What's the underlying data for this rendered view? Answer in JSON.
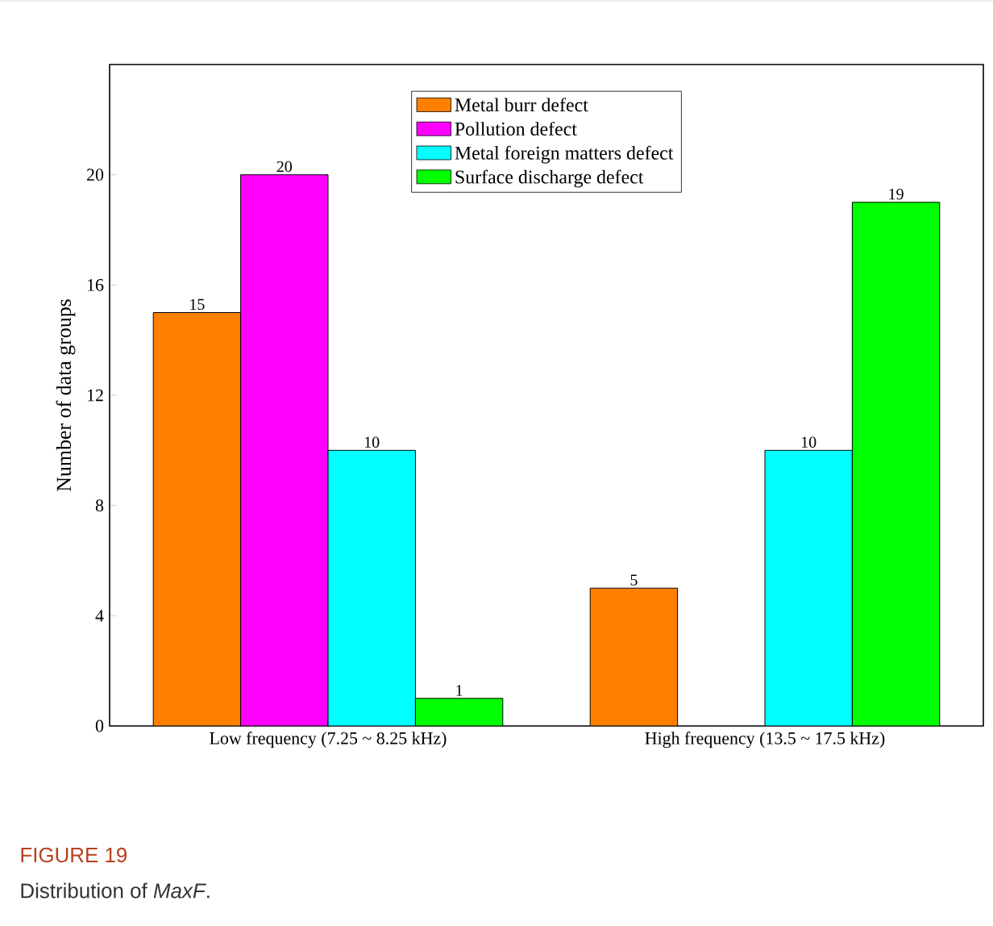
{
  "chart_data": {
    "type": "bar",
    "ylabel": "Number of data groups",
    "categories": [
      "Low frequency (7.25 ~ 8.25 kHz)",
      "High frequency (13.5 ~ 17.5 kHz)"
    ],
    "series": [
      {
        "name": "Metal burr defect",
        "color": "#ff8000",
        "values": [
          15,
          5
        ],
        "value_labels": [
          "15",
          "5"
        ]
      },
      {
        "name": "Pollution defect",
        "color": "#ff00ff",
        "values": [
          20,
          null
        ],
        "value_labels": [
          "20",
          null
        ]
      },
      {
        "name": "Metal foreign matters defect",
        "color": "#00ffff",
        "values": [
          10,
          10
        ],
        "value_labels": [
          "10",
          "10"
        ]
      },
      {
        "name": "Surface discharge defect",
        "color": "#00ff00",
        "values": [
          1,
          19
        ],
        "value_labels": [
          "1",
          "19"
        ]
      }
    ],
    "ylim": [
      0,
      24
    ],
    "yticks": [
      0,
      4,
      8,
      12,
      16,
      20
    ],
    "grid": false,
    "legend": "top",
    "annotations": [
      "FIGURE 19",
      "Distribution of *MaxF*."
    ]
  }
}
